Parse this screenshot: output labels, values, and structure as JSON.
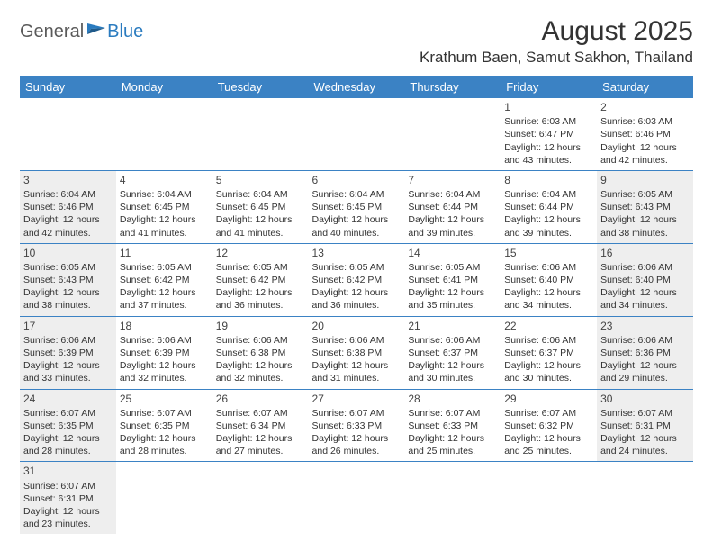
{
  "logo": {
    "text1": "General",
    "text2": "Blue"
  },
  "title": "August 2025",
  "location": "Krathum Baen, Samut Sakhon, Thailand",
  "colors": {
    "header_bg": "#3b82c4",
    "header_text": "#ffffff",
    "shaded_bg": "#eeeeee",
    "border": "#3b82c4",
    "logo_gray": "#5a5a5a",
    "logo_blue": "#2a7bbf"
  },
  "day_headers": [
    "Sunday",
    "Monday",
    "Tuesday",
    "Wednesday",
    "Thursday",
    "Friday",
    "Saturday"
  ],
  "rows": [
    [
      {
        "empty": true
      },
      {
        "empty": true
      },
      {
        "empty": true
      },
      {
        "empty": true
      },
      {
        "empty": true
      },
      {
        "day": "1",
        "sunrise": "Sunrise: 6:03 AM",
        "sunset": "Sunset: 6:47 PM",
        "dl1": "Daylight: 12 hours",
        "dl2": "and 43 minutes."
      },
      {
        "day": "2",
        "sunrise": "Sunrise: 6:03 AM",
        "sunset": "Sunset: 6:46 PM",
        "dl1": "Daylight: 12 hours",
        "dl2": "and 42 minutes."
      }
    ],
    [
      {
        "day": "3",
        "sunrise": "Sunrise: 6:04 AM",
        "sunset": "Sunset: 6:46 PM",
        "dl1": "Daylight: 12 hours",
        "dl2": "and 42 minutes.",
        "shaded": true
      },
      {
        "day": "4",
        "sunrise": "Sunrise: 6:04 AM",
        "sunset": "Sunset: 6:45 PM",
        "dl1": "Daylight: 12 hours",
        "dl2": "and 41 minutes."
      },
      {
        "day": "5",
        "sunrise": "Sunrise: 6:04 AM",
        "sunset": "Sunset: 6:45 PM",
        "dl1": "Daylight: 12 hours",
        "dl2": "and 41 minutes."
      },
      {
        "day": "6",
        "sunrise": "Sunrise: 6:04 AM",
        "sunset": "Sunset: 6:45 PM",
        "dl1": "Daylight: 12 hours",
        "dl2": "and 40 minutes."
      },
      {
        "day": "7",
        "sunrise": "Sunrise: 6:04 AM",
        "sunset": "Sunset: 6:44 PM",
        "dl1": "Daylight: 12 hours",
        "dl2": "and 39 minutes."
      },
      {
        "day": "8",
        "sunrise": "Sunrise: 6:04 AM",
        "sunset": "Sunset: 6:44 PM",
        "dl1": "Daylight: 12 hours",
        "dl2": "and 39 minutes."
      },
      {
        "day": "9",
        "sunrise": "Sunrise: 6:05 AM",
        "sunset": "Sunset: 6:43 PM",
        "dl1": "Daylight: 12 hours",
        "dl2": "and 38 minutes.",
        "shaded": true
      }
    ],
    [
      {
        "day": "10",
        "sunrise": "Sunrise: 6:05 AM",
        "sunset": "Sunset: 6:43 PM",
        "dl1": "Daylight: 12 hours",
        "dl2": "and 38 minutes.",
        "shaded": true
      },
      {
        "day": "11",
        "sunrise": "Sunrise: 6:05 AM",
        "sunset": "Sunset: 6:42 PM",
        "dl1": "Daylight: 12 hours",
        "dl2": "and 37 minutes."
      },
      {
        "day": "12",
        "sunrise": "Sunrise: 6:05 AM",
        "sunset": "Sunset: 6:42 PM",
        "dl1": "Daylight: 12 hours",
        "dl2": "and 36 minutes."
      },
      {
        "day": "13",
        "sunrise": "Sunrise: 6:05 AM",
        "sunset": "Sunset: 6:42 PM",
        "dl1": "Daylight: 12 hours",
        "dl2": "and 36 minutes."
      },
      {
        "day": "14",
        "sunrise": "Sunrise: 6:05 AM",
        "sunset": "Sunset: 6:41 PM",
        "dl1": "Daylight: 12 hours",
        "dl2": "and 35 minutes."
      },
      {
        "day": "15",
        "sunrise": "Sunrise: 6:06 AM",
        "sunset": "Sunset: 6:40 PM",
        "dl1": "Daylight: 12 hours",
        "dl2": "and 34 minutes."
      },
      {
        "day": "16",
        "sunrise": "Sunrise: 6:06 AM",
        "sunset": "Sunset: 6:40 PM",
        "dl1": "Daylight: 12 hours",
        "dl2": "and 34 minutes.",
        "shaded": true
      }
    ],
    [
      {
        "day": "17",
        "sunrise": "Sunrise: 6:06 AM",
        "sunset": "Sunset: 6:39 PM",
        "dl1": "Daylight: 12 hours",
        "dl2": "and 33 minutes.",
        "shaded": true
      },
      {
        "day": "18",
        "sunrise": "Sunrise: 6:06 AM",
        "sunset": "Sunset: 6:39 PM",
        "dl1": "Daylight: 12 hours",
        "dl2": "and 32 minutes."
      },
      {
        "day": "19",
        "sunrise": "Sunrise: 6:06 AM",
        "sunset": "Sunset: 6:38 PM",
        "dl1": "Daylight: 12 hours",
        "dl2": "and 32 minutes."
      },
      {
        "day": "20",
        "sunrise": "Sunrise: 6:06 AM",
        "sunset": "Sunset: 6:38 PM",
        "dl1": "Daylight: 12 hours",
        "dl2": "and 31 minutes."
      },
      {
        "day": "21",
        "sunrise": "Sunrise: 6:06 AM",
        "sunset": "Sunset: 6:37 PM",
        "dl1": "Daylight: 12 hours",
        "dl2": "and 30 minutes."
      },
      {
        "day": "22",
        "sunrise": "Sunrise: 6:06 AM",
        "sunset": "Sunset: 6:37 PM",
        "dl1": "Daylight: 12 hours",
        "dl2": "and 30 minutes."
      },
      {
        "day": "23",
        "sunrise": "Sunrise: 6:06 AM",
        "sunset": "Sunset: 6:36 PM",
        "dl1": "Daylight: 12 hours",
        "dl2": "and 29 minutes.",
        "shaded": true
      }
    ],
    [
      {
        "day": "24",
        "sunrise": "Sunrise: 6:07 AM",
        "sunset": "Sunset: 6:35 PM",
        "dl1": "Daylight: 12 hours",
        "dl2": "and 28 minutes.",
        "shaded": true
      },
      {
        "day": "25",
        "sunrise": "Sunrise: 6:07 AM",
        "sunset": "Sunset: 6:35 PM",
        "dl1": "Daylight: 12 hours",
        "dl2": "and 28 minutes."
      },
      {
        "day": "26",
        "sunrise": "Sunrise: 6:07 AM",
        "sunset": "Sunset: 6:34 PM",
        "dl1": "Daylight: 12 hours",
        "dl2": "and 27 minutes."
      },
      {
        "day": "27",
        "sunrise": "Sunrise: 6:07 AM",
        "sunset": "Sunset: 6:33 PM",
        "dl1": "Daylight: 12 hours",
        "dl2": "and 26 minutes."
      },
      {
        "day": "28",
        "sunrise": "Sunrise: 6:07 AM",
        "sunset": "Sunset: 6:33 PM",
        "dl1": "Daylight: 12 hours",
        "dl2": "and 25 minutes."
      },
      {
        "day": "29",
        "sunrise": "Sunrise: 6:07 AM",
        "sunset": "Sunset: 6:32 PM",
        "dl1": "Daylight: 12 hours",
        "dl2": "and 25 minutes."
      },
      {
        "day": "30",
        "sunrise": "Sunrise: 6:07 AM",
        "sunset": "Sunset: 6:31 PM",
        "dl1": "Daylight: 12 hours",
        "dl2": "and 24 minutes.",
        "shaded": true
      }
    ],
    [
      {
        "day": "31",
        "sunrise": "Sunrise: 6:07 AM",
        "sunset": "Sunset: 6:31 PM",
        "dl1": "Daylight: 12 hours",
        "dl2": "and 23 minutes.",
        "shaded": true
      },
      {
        "empty": true
      },
      {
        "empty": true
      },
      {
        "empty": true
      },
      {
        "empty": true
      },
      {
        "empty": true
      },
      {
        "empty": true
      }
    ]
  ]
}
